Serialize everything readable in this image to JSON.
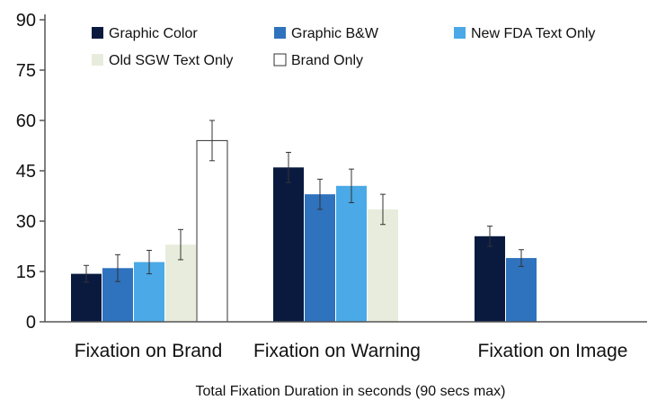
{
  "chart_data": {
    "type": "bar",
    "title": "",
    "xlabel": "Total Fixation Duration in seconds (90 secs max)",
    "ylabel": "",
    "ylim": [
      0,
      90
    ],
    "yticks": [
      0,
      15,
      30,
      45,
      60,
      75,
      90
    ],
    "categories": [
      "Fixation on Brand",
      "Fixation on Warning",
      "Fixation on Image"
    ],
    "legend_position": "top",
    "grid": false,
    "error_bars": true,
    "series": [
      {
        "name": "Graphic Color",
        "color": "#0a1a3f",
        "values": [
          14.3,
          46.0,
          25.5
        ],
        "errors": [
          2.5,
          4.5,
          3.0
        ]
      },
      {
        "name": "Graphic B&W",
        "color": "#2f72be",
        "values": [
          16.0,
          38.0,
          19.0
        ],
        "errors": [
          4.0,
          4.5,
          2.5
        ]
      },
      {
        "name": "New FDA Text Only",
        "color": "#4aa9e6",
        "values": [
          17.8,
          40.5,
          null
        ],
        "errors": [
          3.5,
          5.0,
          null
        ]
      },
      {
        "name": "Old SGW Text Only",
        "color": "#e8ecdc",
        "values": [
          23.0,
          33.5,
          null
        ],
        "errors": [
          4.5,
          4.5,
          null
        ]
      },
      {
        "name": "Brand Only",
        "color": "#ffffff",
        "values": [
          54.0,
          null,
          null
        ],
        "errors": [
          6.0,
          null,
          null
        ]
      }
    ]
  }
}
